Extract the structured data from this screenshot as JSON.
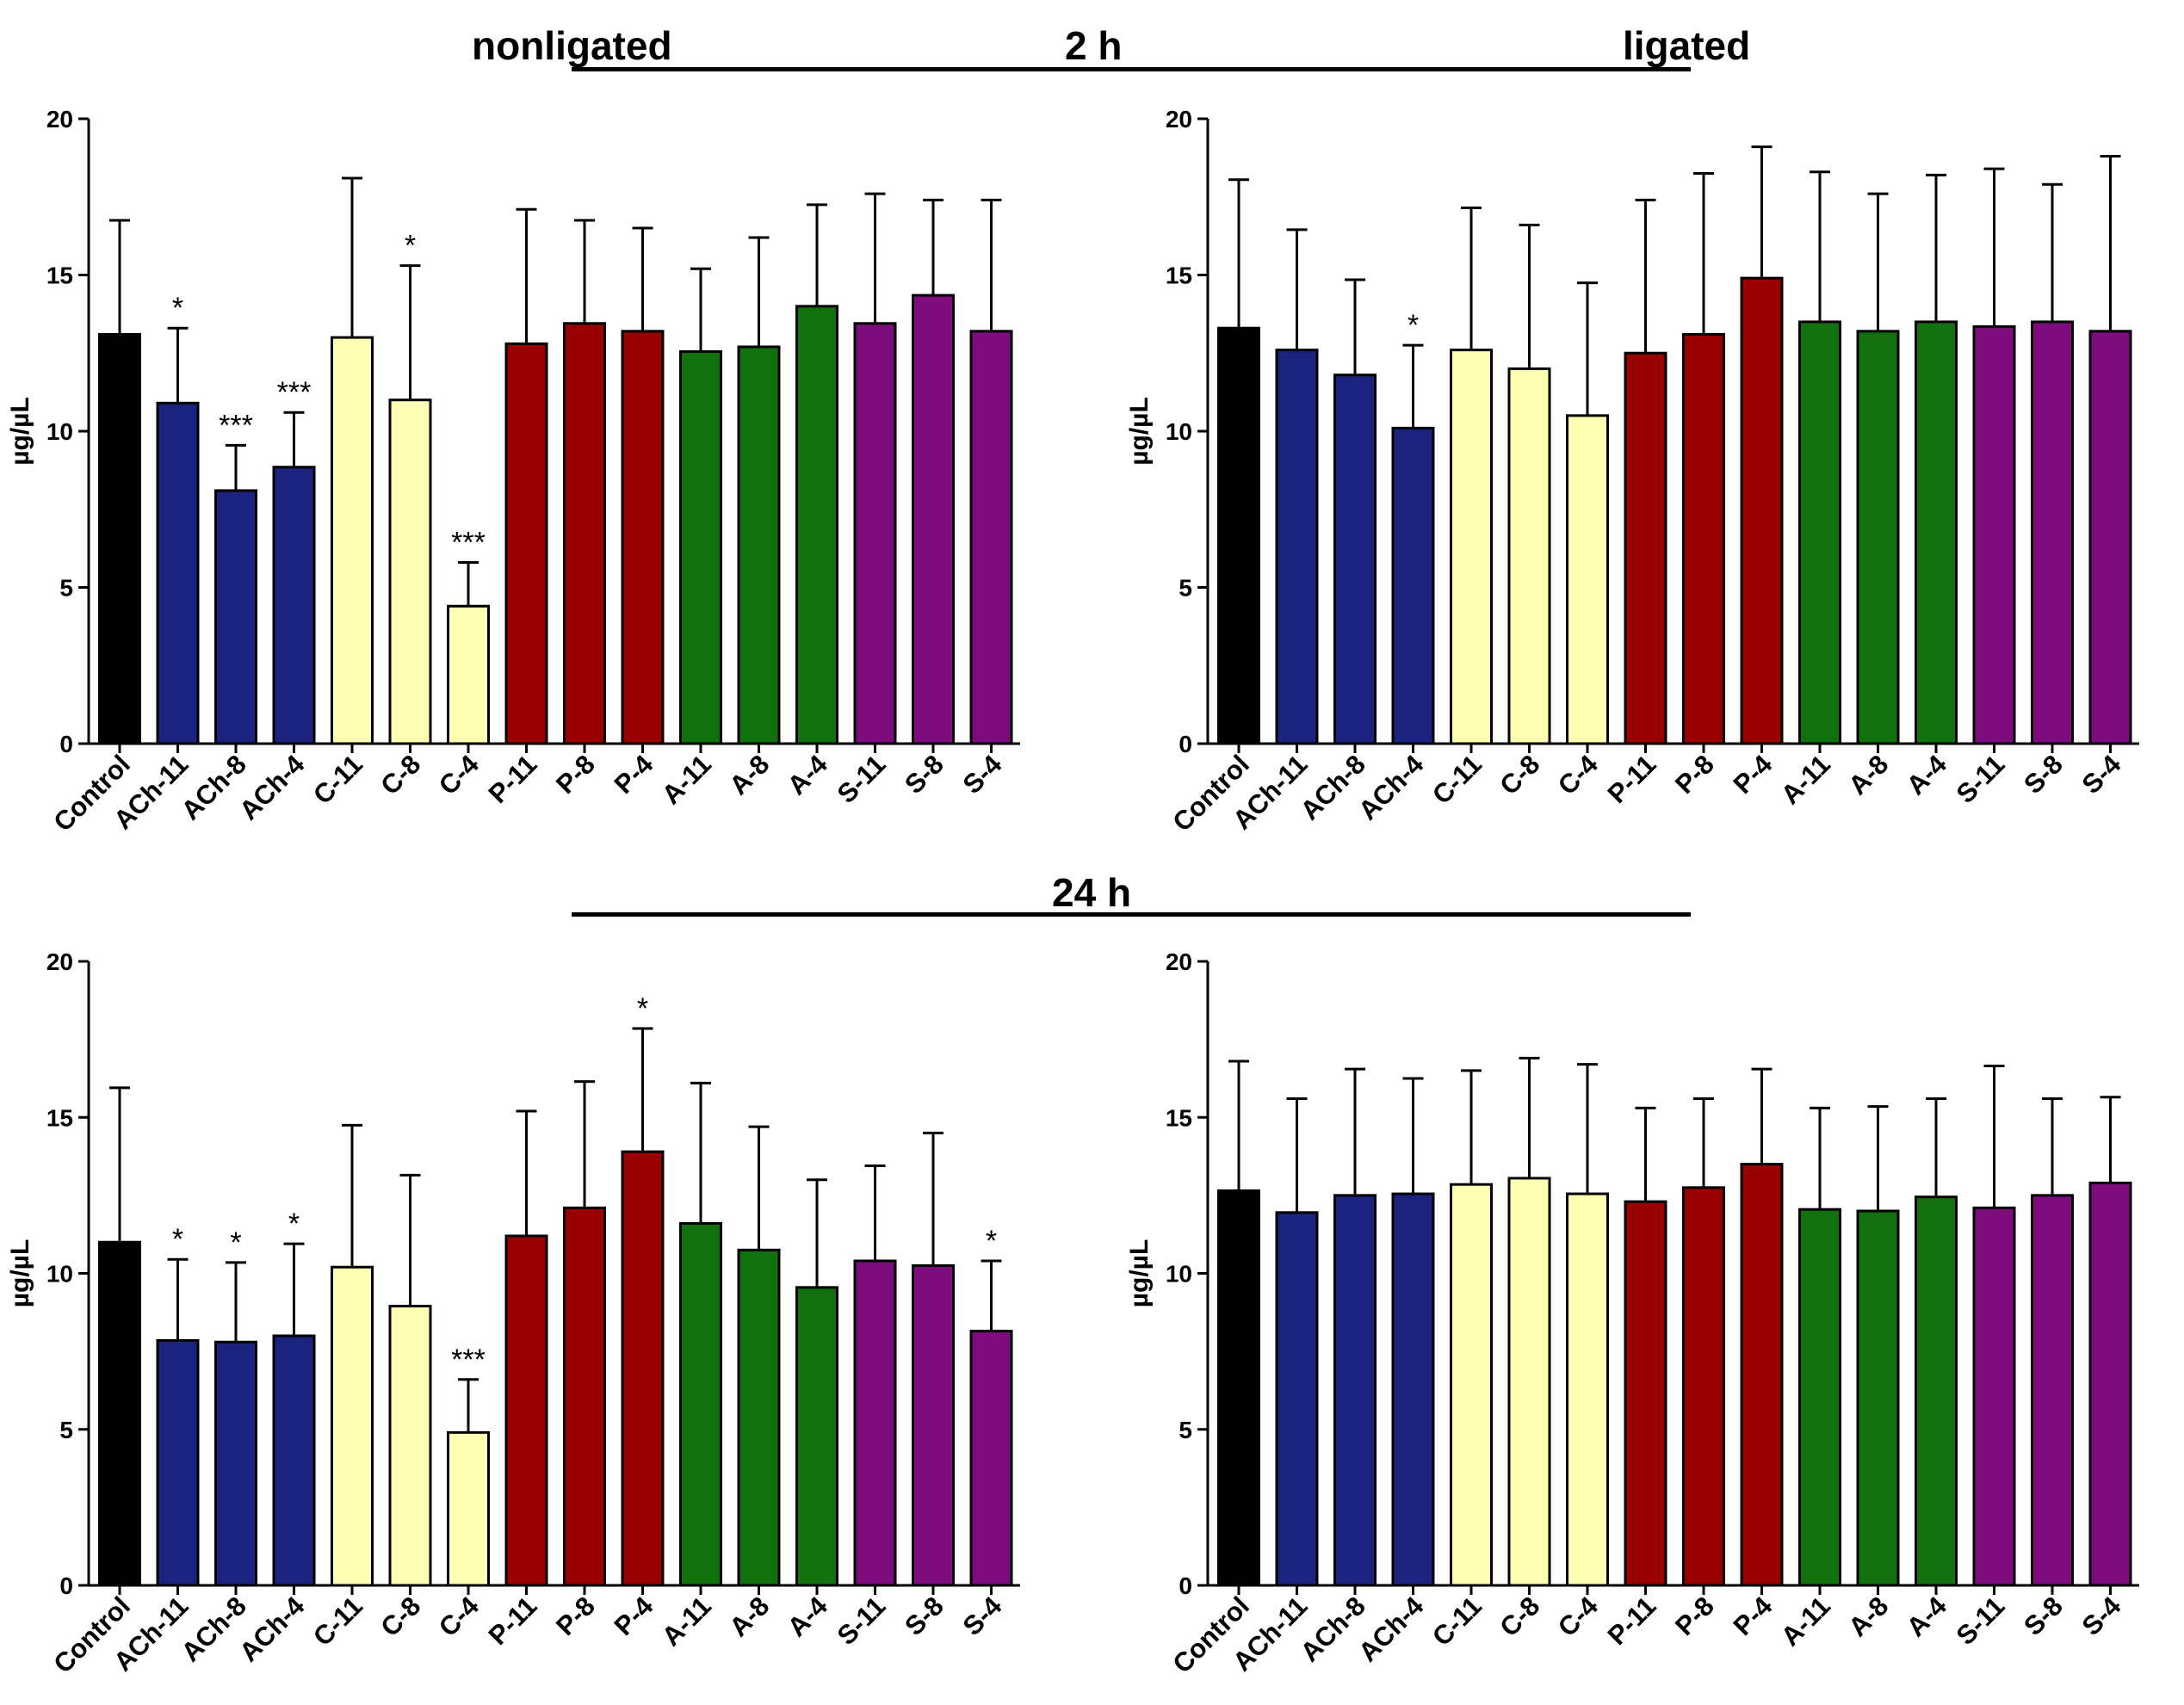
{
  "headers": {
    "nonligated": "nonligated",
    "ligated": "ligated",
    "time_2h": "2 h",
    "time_24h": "24 h"
  },
  "colors": {
    "Control": "#000000",
    "ACh": "#1b237f",
    "C": "#ffffb3",
    "P": "#990000",
    "A": "#13700f",
    "S": "#7d0c7d"
  },
  "chart_data": [
    {
      "id": "nonligated_2h",
      "type": "bar",
      "ylabel": "µg/µL",
      "ylim": [
        0,
        20
      ],
      "yticks": [
        0,
        5,
        10,
        15,
        20
      ],
      "categories": [
        "Control",
        "ACh-11",
        "ACh-8",
        "ACh-4",
        "C-11",
        "C-8",
        "C-4",
        "P-11",
        "P-8",
        "P-4",
        "A-11",
        "A-8",
        "A-4",
        "S-11",
        "S-8",
        "S-4"
      ],
      "groups": [
        "Control",
        "ACh",
        "ACh",
        "ACh",
        "C",
        "C",
        "C",
        "P",
        "P",
        "P",
        "A",
        "A",
        "A",
        "S",
        "S",
        "S"
      ],
      "values": [
        13.1,
        10.9,
        8.1,
        8.85,
        13.0,
        11.0,
        4.4,
        12.8,
        13.45,
        13.2,
        12.55,
        12.7,
        14.0,
        13.45,
        14.35,
        13.2
      ],
      "errors": [
        3.65,
        2.4,
        1.45,
        1.75,
        5.1,
        4.3,
        1.4,
        4.3,
        3.3,
        3.3,
        2.65,
        3.5,
        3.25,
        4.15,
        3.05,
        4.2
      ],
      "significance": [
        "",
        "*",
        "***",
        "***",
        "",
        "*",
        "***",
        "",
        "",
        "",
        "",
        "",
        "",
        "",
        "",
        ""
      ]
    },
    {
      "id": "ligated_2h",
      "type": "bar",
      "ylabel": "µg/µL",
      "ylim": [
        0,
        20
      ],
      "yticks": [
        0,
        5,
        10,
        15,
        20
      ],
      "categories": [
        "Control",
        "ACh-11",
        "ACh-8",
        "ACh-4",
        "C-11",
        "C-8",
        "C-4",
        "P-11",
        "P-8",
        "P-4",
        "A-11",
        "A-8",
        "A-4",
        "S-11",
        "S-8",
        "S-4"
      ],
      "groups": [
        "Control",
        "ACh",
        "ACh",
        "ACh",
        "C",
        "C",
        "C",
        "P",
        "P",
        "P",
        "A",
        "A",
        "A",
        "S",
        "S",
        "S"
      ],
      "values": [
        13.3,
        12.6,
        11.8,
        10.1,
        12.6,
        12.0,
        10.5,
        12.5,
        13.1,
        14.9,
        13.5,
        13.2,
        13.5,
        13.35,
        13.5,
        13.2
      ],
      "errors": [
        4.75,
        3.85,
        3.05,
        2.65,
        4.55,
        4.6,
        4.25,
        4.9,
        5.15,
        4.2,
        4.8,
        4.4,
        4.7,
        5.05,
        4.4,
        5.6
      ],
      "significance": [
        "",
        "",
        "",
        "*",
        "",
        "",
        "",
        "",
        "",
        "",
        "",
        "",
        "",
        "",
        "",
        ""
      ]
    },
    {
      "id": "nonligated_24h",
      "type": "bar",
      "ylabel": "µg/µL",
      "ylim": [
        0,
        20
      ],
      "yticks": [
        0,
        5,
        10,
        15,
        20
      ],
      "categories": [
        "Control",
        "ACh-11",
        "ACh-8",
        "ACh-4",
        "C-11",
        "C-8",
        "C-4",
        "P-11",
        "P-8",
        "P-4",
        "A-11",
        "A-8",
        "A-4",
        "S-11",
        "S-8",
        "S-4"
      ],
      "groups": [
        "Control",
        "ACh",
        "ACh",
        "ACh",
        "C",
        "C",
        "C",
        "P",
        "P",
        "P",
        "A",
        "A",
        "A",
        "S",
        "S",
        "S"
      ],
      "values": [
        11.0,
        7.85,
        7.8,
        8.0,
        10.2,
        8.95,
        4.9,
        11.2,
        12.1,
        13.9,
        11.6,
        10.75,
        9.55,
        10.4,
        10.25,
        8.15
      ],
      "errors": [
        4.95,
        2.6,
        2.55,
        2.95,
        4.55,
        4.2,
        1.7,
        4.0,
        4.05,
        3.95,
        4.5,
        3.95,
        3.45,
        3.05,
        4.25,
        2.25
      ],
      "significance": [
        "",
        "*",
        "*",
        "*",
        "",
        "",
        "***",
        "",
        "",
        "*",
        "",
        "",
        "",
        "",
        "",
        "*"
      ]
    },
    {
      "id": "ligated_24h",
      "type": "bar",
      "ylabel": "µg/µL",
      "ylim": [
        0,
        20
      ],
      "yticks": [
        0,
        5,
        10,
        15,
        20
      ],
      "categories": [
        "Control",
        "ACh-11",
        "ACh-8",
        "ACh-4",
        "C-11",
        "C-8",
        "C-4",
        "P-11",
        "P-8",
        "P-4",
        "A-11",
        "A-8",
        "A-4",
        "S-11",
        "S-8",
        "S-4"
      ],
      "groups": [
        "Control",
        "ACh",
        "ACh",
        "ACh",
        "C",
        "C",
        "C",
        "P",
        "P",
        "P",
        "A",
        "A",
        "A",
        "S",
        "S",
        "S"
      ],
      "values": [
        12.65,
        11.95,
        12.5,
        12.55,
        12.85,
        13.05,
        12.55,
        12.3,
        12.75,
        13.5,
        12.05,
        12.0,
        12.45,
        12.1,
        12.5,
        12.9
      ],
      "errors": [
        4.15,
        3.65,
        4.05,
        3.7,
        3.65,
        3.85,
        4.15,
        3.0,
        2.85,
        3.05,
        3.25,
        3.35,
        3.15,
        4.55,
        3.1,
        2.75
      ],
      "significance": [
        "",
        "",
        "",
        "",
        "",
        "",
        "",
        "",
        "",
        "",
        "",
        "",
        "",
        "",
        "",
        ""
      ]
    }
  ]
}
